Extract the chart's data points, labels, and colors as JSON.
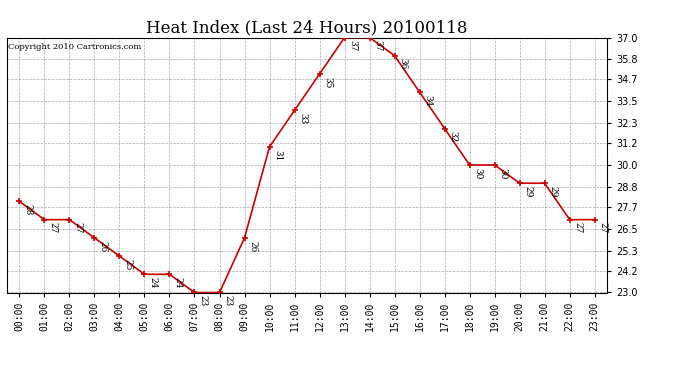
{
  "title": "Heat Index (Last 24 Hours) 20100118",
  "copyright": "Copyright 2010 Cartronics.com",
  "hours": [
    "00:00",
    "01:00",
    "02:00",
    "03:00",
    "04:00",
    "05:00",
    "06:00",
    "07:00",
    "08:00",
    "09:00",
    "10:00",
    "11:00",
    "12:00",
    "13:00",
    "14:00",
    "15:00",
    "16:00",
    "17:00",
    "18:00",
    "19:00",
    "20:00",
    "21:00",
    "22:00",
    "23:00"
  ],
  "values": [
    28,
    27,
    27,
    26,
    25,
    24,
    24,
    23,
    23,
    26,
    31,
    33,
    35,
    37,
    37,
    36,
    34,
    32,
    30,
    30,
    29,
    29,
    27,
    27
  ],
  "line_color": "#cc0000",
  "marker_color": "#cc0000",
  "bg_color": "#ffffff",
  "grid_color": "#aaaaaa",
  "ylim_min": 23.0,
  "ylim_max": 37.0,
  "yticks": [
    23.0,
    24.2,
    25.3,
    26.5,
    27.7,
    28.8,
    30.0,
    31.2,
    32.3,
    33.5,
    34.7,
    35.8,
    37.0
  ],
  "title_fontsize": 12,
  "label_fontsize": 6.5,
  "tick_fontsize": 7,
  "copyright_fontsize": 6
}
